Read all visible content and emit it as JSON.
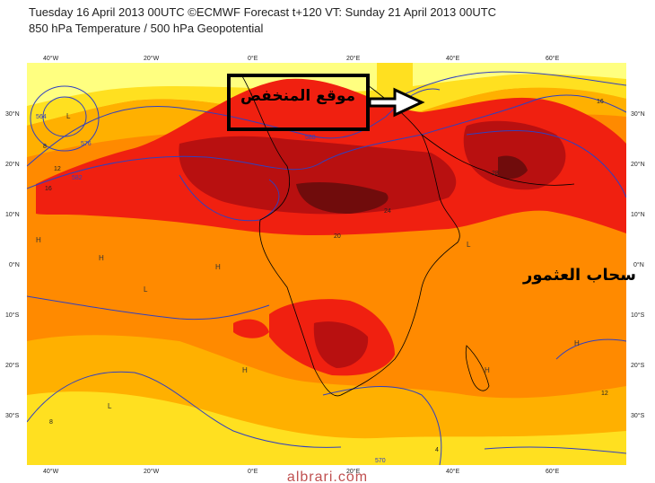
{
  "header": {
    "line1": "Tuesday 16 April 2013 00UTC ©ECMWF Forecast t+120 VT: Sunday 21 April 2013 00UTC",
    "line2": "850 hPa Temperature / 500 hPa Geopotential"
  },
  "axes": {
    "top_lon": [
      "40°W",
      "20°W",
      "0°E",
      "20°E",
      "40°E",
      "60°E"
    ],
    "bottom_lon": [
      "40°W",
      "20°W",
      "0°E",
      "20°E",
      "40°E",
      "60°E"
    ],
    "left_lat": [
      "30°N",
      "20°N",
      "10°N",
      "0°N",
      "10°S",
      "20°S",
      "30°S"
    ],
    "right_lat": [
      "30°N",
      "20°N",
      "10°N",
      "0°N",
      "10°S",
      "20°S",
      "30°S"
    ]
  },
  "annotations": {
    "low_location": "موقع المنخفض",
    "cloud_label": "سحاب العثمور"
  },
  "isoline_labels": [
    "564",
    "576",
    "582",
    "588",
    "8",
    "12",
    "16",
    "20",
    "24",
    "28",
    "16",
    "12",
    "8",
    "4",
    "570"
  ],
  "watermark": "albrari.com",
  "colors": {
    "pale_yellow": "#ffff80",
    "yellow": "#ffe020",
    "light_orange": "#ffb000",
    "orange": "#ff8a00",
    "red": "#f02010",
    "dark_red": "#b81010",
    "maroon": "#700c0c",
    "contour_blue": "#3040c0"
  }
}
